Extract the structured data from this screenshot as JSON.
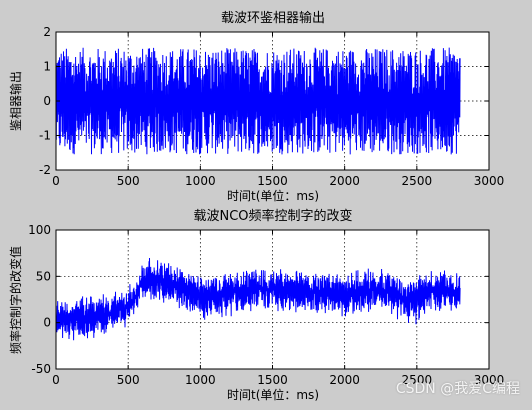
{
  "figure": {
    "background": "#cccccc",
    "plot_bg": "#ffffff",
    "line_color": "#0000ff"
  },
  "watermark": "CSDN @我爱C编程",
  "chart_data": [
    {
      "type": "line",
      "title": "载波环鉴相器输出",
      "xlabel": "时间t(单位：ms)",
      "ylabel": "鉴相器输出",
      "xlim": [
        0,
        3000
      ],
      "ylim": [
        -2,
        2
      ],
      "xticks": [
        0,
        500,
        1000,
        1500,
        2000,
        2500,
        3000
      ],
      "yticks": [
        -2,
        -1,
        0,
        1,
        2
      ],
      "grid": true,
      "series": [
        {
          "x_range": [
            0,
            2800
          ],
          "y_min": -1.55,
          "y_max": 1.55,
          "baseline": 0,
          "note_kind": "noise_band"
        }
      ]
    },
    {
      "type": "line",
      "title": "载波NCO频率控制字的改变",
      "xlabel": "时间t(单位：ms)",
      "ylabel": "频率控制字的改变值",
      "xlim": [
        0,
        3000
      ],
      "ylim": [
        -50,
        100
      ],
      "xticks": [
        0,
        500,
        1000,
        1500,
        2000,
        2500,
        3000
      ],
      "yticks": [
        -50,
        0,
        50,
        100
      ],
      "grid": true,
      "series": [
        {
          "x_range": [
            0,
            2800
          ],
          "envelope": [
            {
              "x": 0,
              "lo": -22,
              "hi": 28
            },
            {
              "x": 250,
              "lo": -18,
              "hi": 32
            },
            {
              "x": 500,
              "lo": -8,
              "hi": 40
            },
            {
              "x": 560,
              "lo": 8,
              "hi": 55
            },
            {
              "x": 600,
              "lo": 22,
              "hi": 72
            },
            {
              "x": 750,
              "lo": 18,
              "hi": 70
            },
            {
              "x": 900,
              "lo": 12,
              "hi": 58
            },
            {
              "x": 1050,
              "lo": 0,
              "hi": 55
            },
            {
              "x": 1200,
              "lo": 5,
              "hi": 58
            },
            {
              "x": 1400,
              "lo": 12,
              "hi": 62
            },
            {
              "x": 1600,
              "lo": 8,
              "hi": 60
            },
            {
              "x": 1800,
              "lo": 5,
              "hi": 58
            },
            {
              "x": 2000,
              "lo": 5,
              "hi": 55
            },
            {
              "x": 2200,
              "lo": 10,
              "hi": 62
            },
            {
              "x": 2350,
              "lo": 5,
              "hi": 60
            },
            {
              "x": 2450,
              "lo": -8,
              "hi": 52
            },
            {
              "x": 2600,
              "lo": 8,
              "hi": 60
            },
            {
              "x": 2800,
              "lo": 10,
              "hi": 58
            }
          ]
        }
      ]
    }
  ]
}
